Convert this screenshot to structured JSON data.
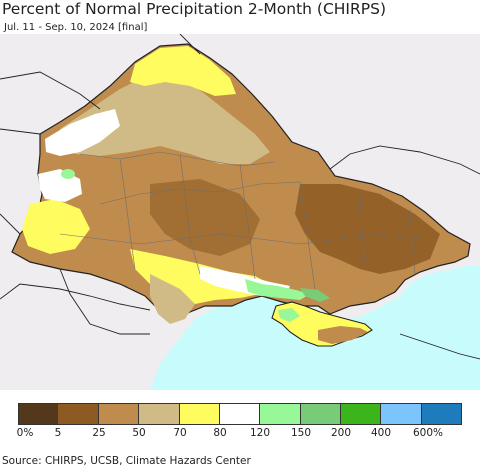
{
  "title": "Percent of Normal Precipitation 2-Month (CHIRPS)",
  "subtitle": "Jul. 11 - Sep. 10, 2024 [final]",
  "source": "Source: CHIRPS, UCSB, Climate Hazards Center",
  "colors": {
    "sea": "#c8fcfc",
    "outside": "#efedf0",
    "border": "#222222",
    "internal_border": "#6e6e6e"
  },
  "legend": {
    "colors": [
      "#54381c",
      "#8c5a22",
      "#c08c4e",
      "#d0bb86",
      "#fefc5e",
      "#ffffff",
      "#98f898",
      "#78cc78",
      "#3cb41c",
      "#7cc4fc",
      "#1e7cbc"
    ],
    "ticks": [
      "0%",
      "5",
      "25",
      "50",
      "70",
      "80",
      "120",
      "150",
      "200",
      "400",
      "600%"
    ]
  }
}
